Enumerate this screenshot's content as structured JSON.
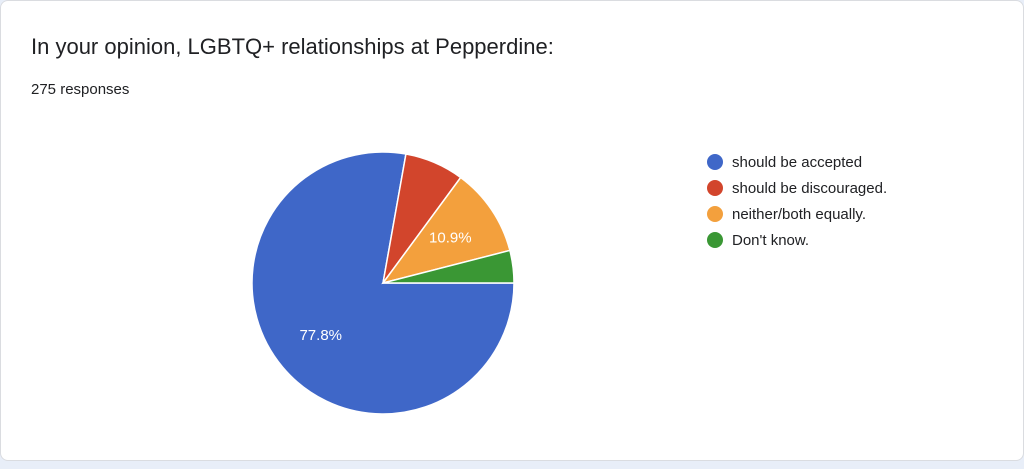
{
  "card": {
    "title": "In your opinion, LGBTQ+ relationships at Pepperdine:",
    "response_count": "275 responses"
  },
  "chart_data": {
    "type": "pie",
    "title": "In your opinion, LGBTQ+ relationships at Pepperdine:",
    "categories": [
      "should be accepted",
      "should be discouraged.",
      "neither/both equally.",
      "Don't know."
    ],
    "values": [
      77.8,
      7.3,
      10.9,
      4.0
    ],
    "labels": [
      "77.8%",
      "",
      "10.9%",
      ""
    ],
    "colors": [
      "#3f67c8",
      "#d2452c",
      "#f3a03d",
      "#3a9734"
    ],
    "legend_position": "right"
  }
}
